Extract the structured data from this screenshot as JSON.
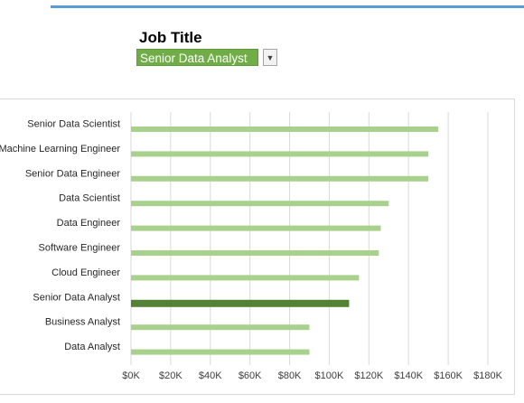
{
  "header": {
    "title": "Job Title"
  },
  "filter": {
    "selected": "Senior Data Analyst",
    "arrow_icon": "dropdown-arrow-icon"
  },
  "colors": {
    "bar": "#a9d18e",
    "bar_highlight": "#548235",
    "dropdown_bg": "#70ad47",
    "accent_rule": "#5b9bd5",
    "grid": "#d9d9d9"
  },
  "chart_data": {
    "type": "bar",
    "orientation": "horizontal",
    "categories": [
      "Senior Data Scientist",
      "Machine Learning Engineer",
      "Senior Data Engineer",
      "Data Scientist",
      "Data Engineer",
      "Software Engineer",
      "Cloud Engineer",
      "Senior Data Analyst",
      "Business Analyst",
      "Data Analyst"
    ],
    "values": [
      155000,
      150000,
      150000,
      130000,
      126000,
      125000,
      115000,
      110000,
      90000,
      90000
    ],
    "highlight": "Senior Data Analyst",
    "xlim": [
      0,
      180000
    ],
    "xticks": [
      "$0K",
      "$20K",
      "$40K",
      "$60K",
      "$80K",
      "$100K",
      "$120K",
      "$140K",
      "$160K",
      "$180K"
    ],
    "grid": "vertical",
    "title": "",
    "xlabel": "",
    "ylabel": ""
  }
}
